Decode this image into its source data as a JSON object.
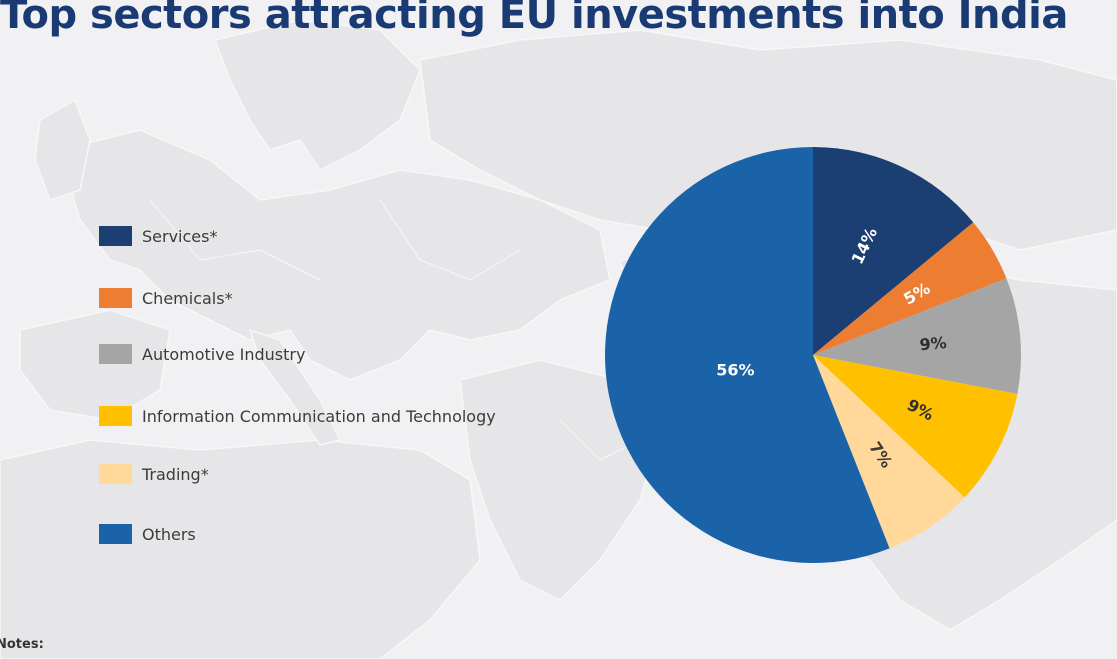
{
  "title": "Top sectors attracting EU investments into India",
  "notes_label": "Notes:",
  "chart_data": {
    "type": "pie",
    "title": "Top sectors attracting EU investments into India",
    "legend_position": "left",
    "slices": [
      {
        "label": "Services*",
        "value": 14,
        "display": "14%",
        "color": "#1b3f73",
        "text_color": "#ffffff"
      },
      {
        "label": "Chemicals*",
        "value": 5,
        "display": "5%",
        "color": "#ed7d31",
        "text_color": "#ffffff"
      },
      {
        "label": "Automotive Industry",
        "value": 9,
        "display": "9%",
        "color": "#a5a5a5",
        "text_color": "#2f2f2f"
      },
      {
        "label": "Information Communication and Technology",
        "value": 9,
        "display": "9%",
        "color": "#ffc000",
        "text_color": "#2f2f2f"
      },
      {
        "label": "Trading*",
        "value": 7,
        "display": "7%",
        "color": "#ffd89a",
        "text_color": "#3a3a3a"
      },
      {
        "label": "Others",
        "value": 56,
        "display": "56%",
        "color": "#1a63a9",
        "text_color": "#ffffff"
      }
    ]
  }
}
